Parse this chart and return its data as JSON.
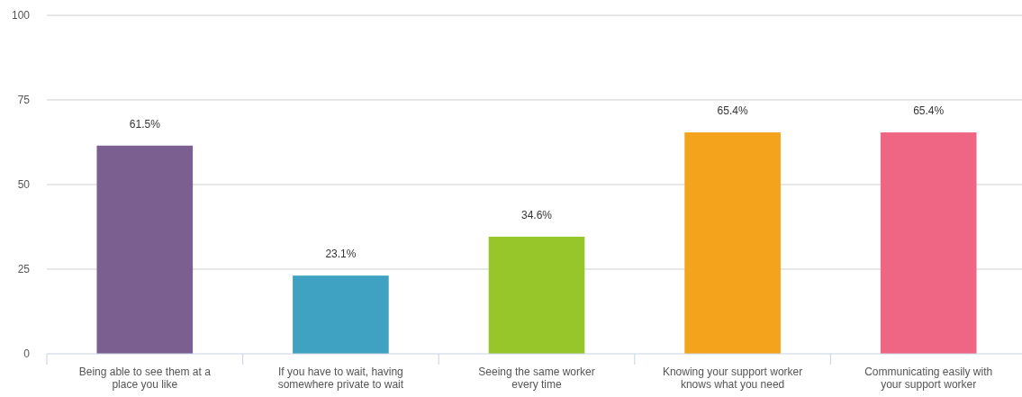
{
  "chart_data": {
    "type": "bar",
    "categories": [
      "Being able to see them at a place you like",
      "If you have to wait, having somewhere private to wait",
      "Seeing the same worker every time",
      "Knowing your support worker knows what you need",
      "Communicating easily with your support worker"
    ],
    "values": [
      61.5,
      23.1,
      34.6,
      65.4,
      65.4
    ],
    "value_labels": [
      "61.5%",
      "23.1%",
      "34.6%",
      "65.4%",
      "65.4%"
    ],
    "colors": [
      "#7b5f91",
      "#3fa2c2",
      "#97c62a",
      "#f3a31c",
      "#ef6584"
    ],
    "ylim": [
      0,
      100
    ],
    "yticks": [
      0,
      25,
      50,
      75,
      100
    ],
    "grid": "y"
  }
}
